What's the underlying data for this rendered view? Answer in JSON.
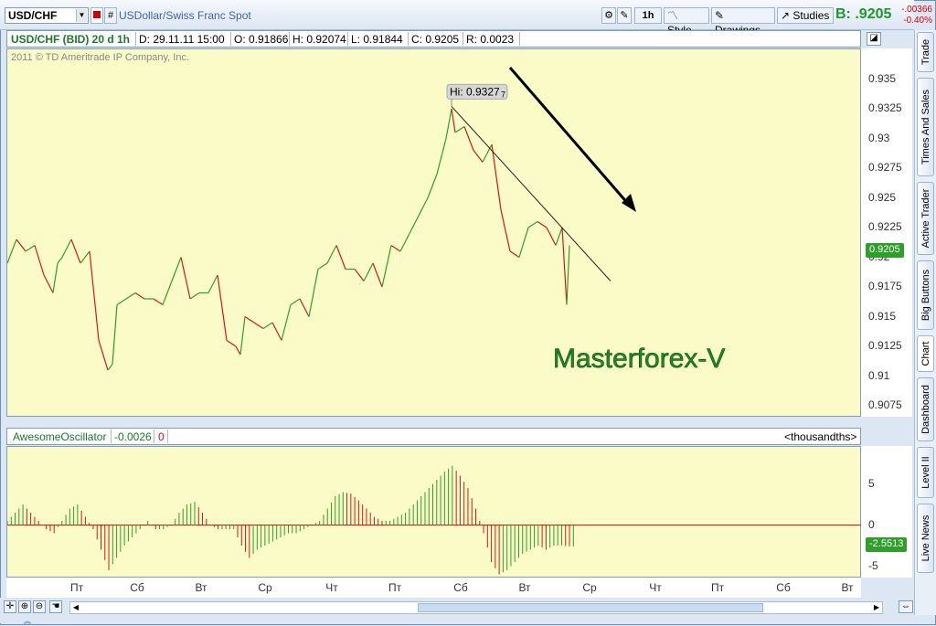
{
  "toolbar": {
    "symbol": "USD/CHF",
    "description": "USDollar/Swiss Franc Spot",
    "interval": "1h",
    "style": "Style",
    "drawings": "Drawings",
    "studies": "Studies",
    "bid_label": "B:",
    "bid_value": ".9205",
    "change_abs": "-.00366",
    "change_pct": "-0.40%"
  },
  "info": {
    "series": "USD/CHF (BID) 20 d 1h",
    "date": "D: 29.11.11 15:00",
    "open": "O: 0.91866",
    "high": "H: 0.92074",
    "low": "L: 0.91844",
    "close": "C: 0.9205",
    "range": "R: 0.0023"
  },
  "copyright": "2011 © TD Ameritrade IP Company, Inc.",
  "annotations": {
    "hi_label": "Hi: 0.9327",
    "hi_suffix": "7",
    "watermark": "Masterforex-V",
    "price_tag": "0.9205",
    "osc_tag": "-2.5513"
  },
  "price_axis": [
    "0.935",
    "0.9325",
    "0.93",
    "0.9275",
    "0.925",
    "0.9225",
    "0.92",
    "0.9175",
    "0.915",
    "0.9125",
    "0.91",
    "0.9075"
  ],
  "oscillator": {
    "name": "AwesomeOscillator",
    "value": "-0.0026",
    "value2": "0",
    "units": "<thousandths>",
    "axis": [
      "5",
      "0",
      "-5"
    ]
  },
  "x_axis": [
    "Пт",
    "Сб",
    "Вт",
    "Ср",
    "Чт",
    "Пт",
    "Сб",
    "Вт",
    "Ср",
    "Чт",
    "Пт",
    "Сб",
    "Вт"
  ],
  "side_tabs": [
    "Trade",
    "Times And Sales",
    "Active Trader",
    "Big Buttons",
    "Chart",
    "Dashboard",
    "Level II",
    "Live News"
  ],
  "colors": {
    "up": "#2f9e2a",
    "down": "#d21a1a",
    "background": "#fbfbc8",
    "bid": "#1b9a2a"
  },
  "chart_data": {
    "type": "line",
    "title": "USD/CHF (BID) 20 d 1h",
    "ylim": [
      0.9065,
      0.9375
    ],
    "x": [
      0,
      10,
      20,
      30,
      40,
      50,
      55,
      60,
      70,
      80,
      90,
      100,
      110,
      115,
      120,
      130,
      140,
      150,
      160,
      170,
      180,
      190,
      200,
      210,
      220,
      230,
      240,
      250,
      255,
      260,
      270,
      280,
      290,
      300,
      310,
      320,
      330,
      340,
      350,
      360,
      370,
      380,
      390,
      400,
      410,
      420,
      430,
      440,
      450,
      460,
      470,
      480,
      486,
      490,
      500,
      510,
      520,
      530,
      540,
      550,
      560,
      570,
      580,
      590,
      600,
      607,
      612,
      615
    ],
    "y": [
      0.9195,
      0.9215,
      0.9205,
      0.921,
      0.9185,
      0.917,
      0.9195,
      0.92,
      0.9215,
      0.9195,
      0.9205,
      0.913,
      0.9105,
      0.911,
      0.916,
      0.9165,
      0.917,
      0.9165,
      0.9165,
      0.916,
      0.918,
      0.92,
      0.9165,
      0.917,
      0.917,
      0.9185,
      0.913,
      0.9125,
      0.9118,
      0.915,
      0.9145,
      0.914,
      0.9145,
      0.913,
      0.916,
      0.9165,
      0.915,
      0.919,
      0.9195,
      0.921,
      0.919,
      0.919,
      0.918,
      0.9195,
      0.9175,
      0.921,
      0.9205,
      0.922,
      0.9235,
      0.925,
      0.927,
      0.93,
      0.9325,
      0.9305,
      0.931,
      0.929,
      0.928,
      0.9295,
      0.924,
      0.9205,
      0.92,
      0.9225,
      0.923,
      0.9225,
      0.921,
      0.9225,
      0.916,
      0.921
    ],
    "trendline": [
      [
        486,
        0.9327
      ],
      [
        660,
        0.918
      ]
    ],
    "oscillator_values": [
      0.5,
      1.5,
      2.5,
      1.5,
      0.5,
      -0.5,
      -1.0,
      0.5,
      2.0,
      2.5,
      1.0,
      -0.5,
      -3.0,
      -5.5,
      -4.0,
      -2.5,
      -1.5,
      -0.5,
      0.5,
      -0.5,
      -0.5,
      0.0,
      1.5,
      2.5,
      2.8,
      1.5,
      0.0,
      -0.5,
      -0.5,
      -0.5,
      -2.5,
      -4.0,
      -3.0,
      -2.5,
      -2.0,
      -1.5,
      -1.0,
      -1.0,
      -0.5,
      0.0,
      0.5,
      2.0,
      3.5,
      4.0,
      3.8,
      3.0,
      2.0,
      1.0,
      0.5,
      0.5,
      1.0,
      1.5,
      2.5,
      3.5,
      4.5,
      5.5,
      6.5,
      7.2,
      6.0,
      4.5,
      2.0,
      -1.0,
      -4.5,
      -6.0,
      -5.5,
      -4.5,
      -3.5,
      -3.0,
      -2.5,
      -3.0,
      -2.5,
      -2.5,
      -2.6
    ]
  }
}
